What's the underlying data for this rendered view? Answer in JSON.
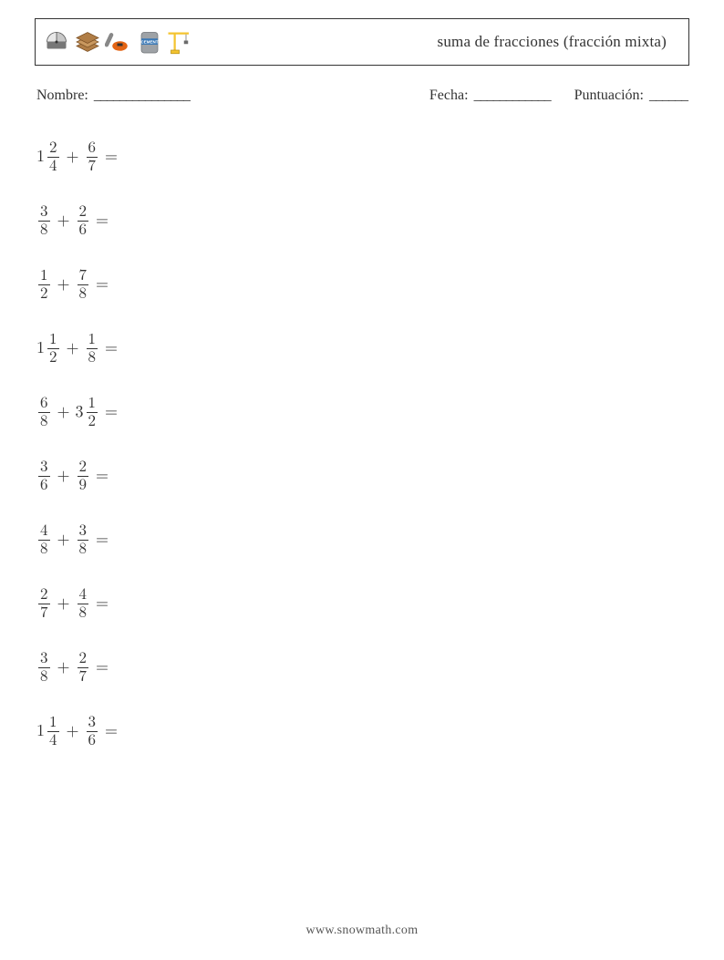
{
  "header": {
    "title": "suma de fracciones (fracción mixta)",
    "icons": [
      {
        "name": "saw-icon"
      },
      {
        "name": "wood-icon"
      },
      {
        "name": "chainsaw-icon"
      },
      {
        "name": "cement-icon"
      },
      {
        "name": "crane-icon"
      }
    ],
    "icon_colors": {
      "saw_body": "#c8c8c8",
      "saw_dark": "#777",
      "wood": "#b07d46",
      "wood_dark": "#7a4f23",
      "chainsaw_body": "#e36414",
      "chainsaw_bar": "#888",
      "cement_bag": "#9ea2a6",
      "cement_label": "#3a78b5",
      "cement_text": "#ffffff",
      "crane_yellow": "#f4c430",
      "crane_dark": "#6b6b6b"
    }
  },
  "info": {
    "name_label": "Nombre:",
    "name_blank": "_______________",
    "date_label": "Fecha:",
    "date_blank": "____________",
    "score_label": "Puntuación:",
    "score_blank": "______"
  },
  "problems": [
    {
      "a_whole": "1",
      "a_num": "2",
      "a_den": "4",
      "b_whole": "",
      "b_num": "6",
      "b_den": "7"
    },
    {
      "a_whole": "",
      "a_num": "3",
      "a_den": "8",
      "b_whole": "",
      "b_num": "2",
      "b_den": "6"
    },
    {
      "a_whole": "",
      "a_num": "1",
      "a_den": "2",
      "b_whole": "",
      "b_num": "7",
      "b_den": "8"
    },
    {
      "a_whole": "1",
      "a_num": "1",
      "a_den": "2",
      "b_whole": "",
      "b_num": "1",
      "b_den": "8"
    },
    {
      "a_whole": "",
      "a_num": "6",
      "a_den": "8",
      "b_whole": "3",
      "b_num": "1",
      "b_den": "2"
    },
    {
      "a_whole": "",
      "a_num": "3",
      "a_den": "6",
      "b_whole": "",
      "b_num": "2",
      "b_den": "9"
    },
    {
      "a_whole": "",
      "a_num": "4",
      "a_den": "8",
      "b_whole": "",
      "b_num": "3",
      "b_den": "8"
    },
    {
      "a_whole": "",
      "a_num": "2",
      "a_den": "7",
      "b_whole": "",
      "b_num": "4",
      "b_den": "8"
    },
    {
      "a_whole": "",
      "a_num": "3",
      "a_den": "8",
      "b_whole": "",
      "b_num": "2",
      "b_den": "7"
    },
    {
      "a_whole": "1",
      "a_num": "1",
      "a_den": "4",
      "b_whole": "",
      "b_num": "3",
      "b_den": "6"
    }
  ],
  "operator": "+",
  "equals": "=",
  "footer": {
    "url": "www.snowmath.com"
  }
}
